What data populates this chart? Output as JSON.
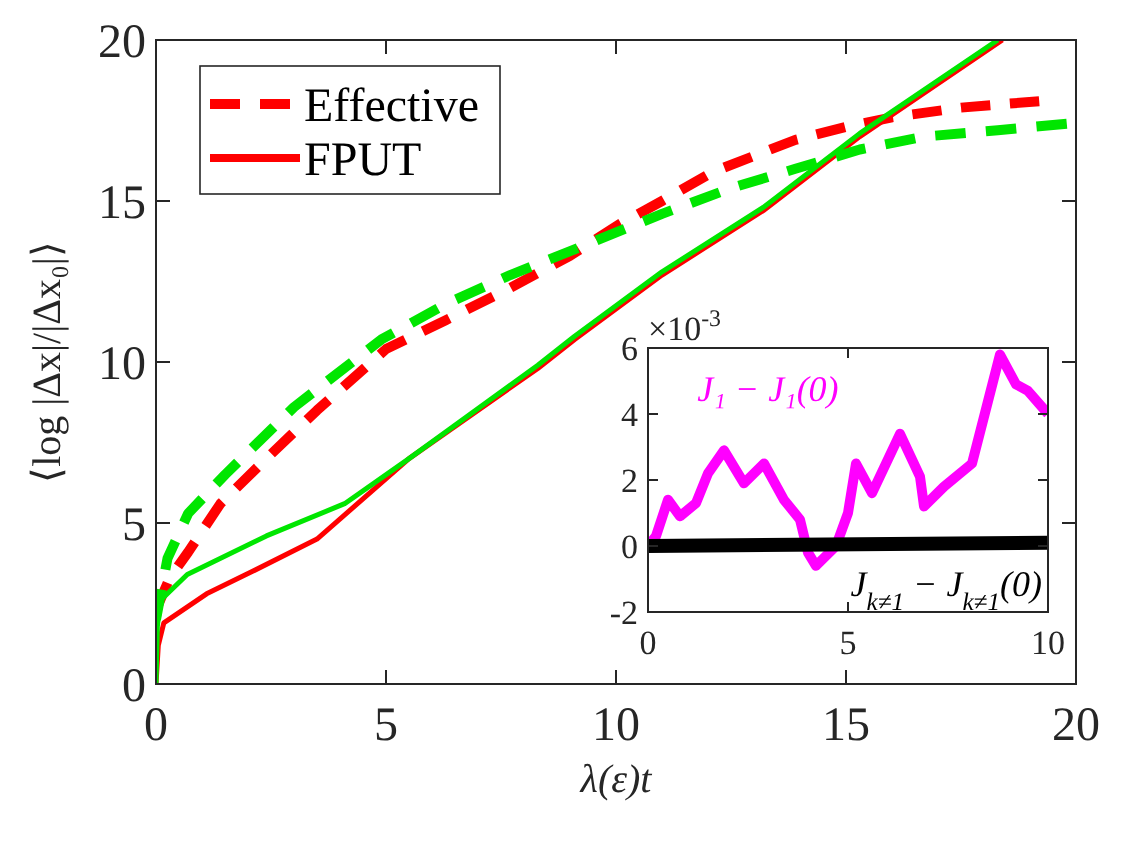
{
  "chart_data": [
    {
      "type": "line",
      "xlabel": "λ(ε)t",
      "ylabel": "⟨log |Δx|/|Δx₀|⟩",
      "xlim": [
        0,
        20
      ],
      "ylim": [
        0,
        20
      ],
      "xticks": [
        0,
        5,
        10,
        15,
        20
      ],
      "yticks": [
        0,
        5,
        10,
        15,
        20
      ],
      "legend": "top left",
      "series": [
        {
          "name": "Effective",
          "color": "#ff0000",
          "line_style": "dashed",
          "x": [
            0,
            0.3,
            0.7,
            1.4,
            2.4,
            3.5,
            5,
            6.3,
            7.7,
            9,
            10.1,
            11,
            12.1,
            13,
            13.9,
            15,
            16,
            17.5,
            19.2
          ],
          "values": [
            2.3,
            3.3,
            4.1,
            5.6,
            7.0,
            8.5,
            10.4,
            11.3,
            12.3,
            13.3,
            14.3,
            15.0,
            15.9,
            16.4,
            16.9,
            17.3,
            17.6,
            17.9,
            18.1
          ]
        },
        {
          "name": "FPUT",
          "color": "#ff0000",
          "line_style": "solid",
          "x": [
            0,
            0.05,
            0.17,
            1.1,
            2.1,
            3.5,
            5.5,
            8.3,
            9.1,
            11,
            13.2,
            15.3,
            18.4
          ],
          "values": [
            0,
            1.2,
            1.9,
            2.8,
            3.5,
            4.5,
            7.0,
            9.8,
            10.7,
            12.7,
            14.7,
            17.0,
            20
          ]
        },
        {
          "color": "#00e600",
          "line_style": "dashed",
          "x": [
            0,
            0.25,
            0.7,
            1.5,
            3,
            4.9,
            6.3,
            7.7,
            9.1,
            11,
            12.5,
            13.9,
            15.3,
            16.7,
            18.3,
            19.8
          ],
          "values": [
            2.0,
            3.9,
            5.3,
            6.5,
            8.6,
            10.7,
            11.8,
            12.7,
            13.5,
            14.6,
            15.4,
            16.0,
            16.6,
            17.0,
            17.2,
            17.4
          ]
        },
        {
          "color": "#00e600",
          "line_style": "solid",
          "x": [
            0,
            0.03,
            0.1,
            0.68,
            2.4,
            4.1,
            5.5,
            8.3,
            9.1,
            11,
            13.2,
            15.3,
            18.3
          ],
          "values": [
            0,
            1.8,
            2.6,
            3.4,
            4.6,
            5.6,
            7.0,
            9.9,
            10.8,
            12.8,
            14.8,
            17.1,
            20
          ]
        }
      ]
    },
    {
      "type": "line",
      "xlim": [
        0,
        10
      ],
      "ylim": [
        -2,
        6
      ],
      "xticks": [
        0,
        5,
        10
      ],
      "yticks": [
        -2,
        0,
        2,
        4,
        6
      ],
      "annotations": [
        "×10$^{-3}$"
      ],
      "series": [
        {
          "name": "J₁ − J₁(0)",
          "color": "#ff00ff",
          "line_style": "solid",
          "x": [
            0,
            0.2,
            0.5,
            0.8,
            1.2,
            1.5,
            1.9,
            2.4,
            2.9,
            3.4,
            3.8,
            4.0,
            4.2,
            4.7,
            5.0,
            5.2,
            5.6,
            6.3,
            6.8,
            6.9,
            7.4,
            8.1,
            8.8,
            9.2,
            9.5,
            10
          ],
          "values": [
            0,
            0.3,
            1.4,
            0.9,
            1.3,
            2.2,
            2.9,
            1.9,
            2.5,
            1.4,
            0.8,
            -0.2,
            -0.6,
            0.0,
            1.0,
            2.5,
            1.6,
            3.4,
            2.1,
            1.2,
            1.8,
            2.5,
            5.8,
            4.9,
            4.7,
            4.0
          ]
        },
        {
          "name": "J$_{k≠1}$ − J$_{k≠1}$(0)",
          "color": "#000000",
          "line_style": "solid",
          "x": [
            0,
            10
          ],
          "values": [
            0,
            0.1
          ]
        }
      ]
    }
  ]
}
